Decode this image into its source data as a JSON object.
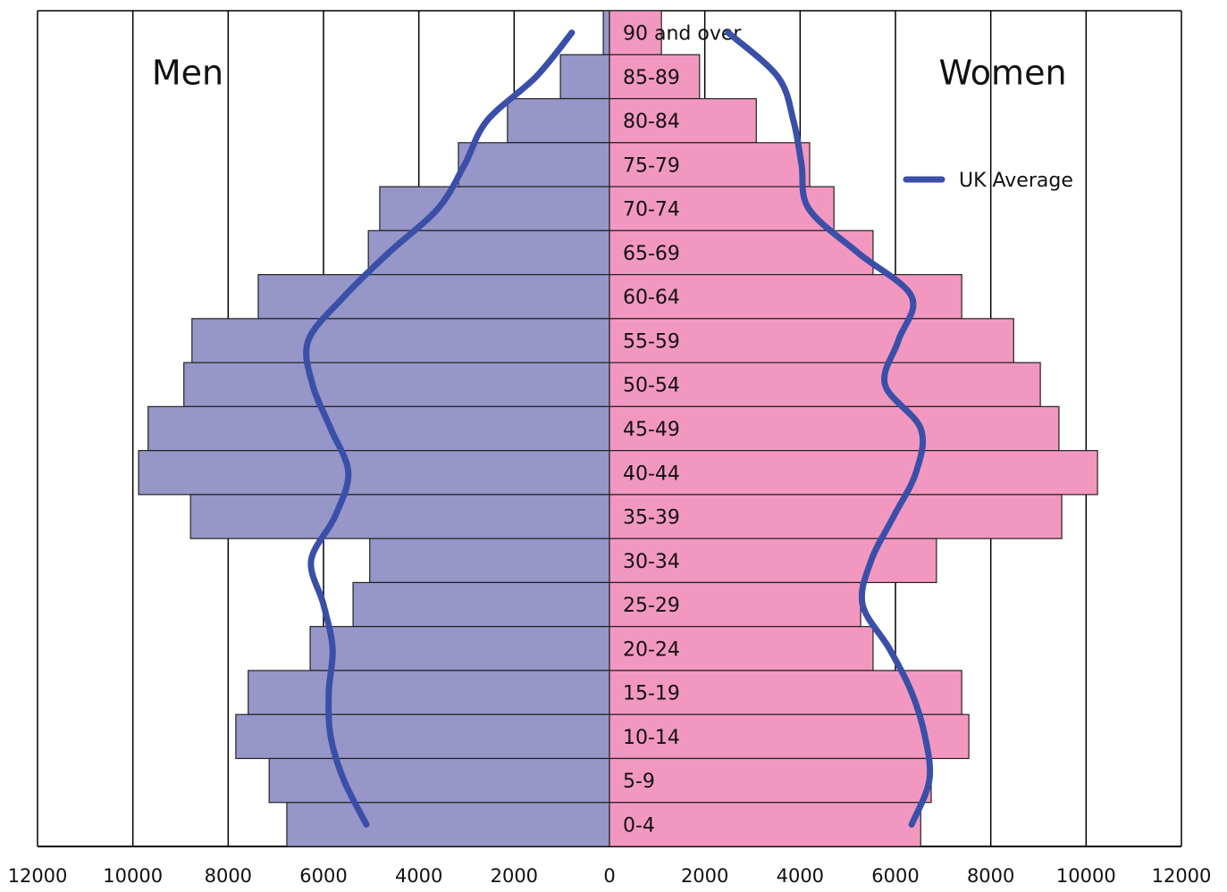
{
  "chart_data": {
    "type": "population-pyramid",
    "categories": [
      "90 and over",
      "85-89",
      "80-84",
      "75-79",
      "70-74",
      "65-69",
      "60-64",
      "55-59",
      "50-54",
      "45-49",
      "40-44",
      "35-39",
      "30-34",
      "25-29",
      "20-24",
      "15-19",
      "10-14",
      "5-9",
      "0-4"
    ],
    "series": [
      {
        "name": "Men",
        "color": "#9696c8",
        "side": "left",
        "values": [
          130,
          1030,
          2140,
          3170,
          4820,
          5060,
          7370,
          8760,
          8930,
          9680,
          9880,
          8790,
          5030,
          5380,
          6280,
          7580,
          7840,
          7140,
          6770
        ]
      },
      {
        "name": "Women",
        "color": "#f298c0",
        "side": "right",
        "values": [
          1090,
          1890,
          3080,
          4200,
          4710,
          5530,
          7390,
          8480,
          9040,
          9430,
          10240,
          9490,
          6860,
          5270,
          5530,
          7390,
          7540,
          6750,
          6530
        ]
      }
    ],
    "average": {
      "name": "UK Average",
      "color": "#3a4fa8",
      "men": [
        790,
        1540,
        2570,
        3040,
        3600,
        4630,
        5570,
        6320,
        6230,
        5850,
        5480,
        5760,
        6260,
        6000,
        5810,
        5890,
        5850,
        5570,
        5100
      ],
      "women": [
        2490,
        3530,
        3860,
        4030,
        4180,
        5210,
        6340,
        6060,
        5780,
        6530,
        6430,
        5960,
        5490,
        5310,
        5870,
        6340,
        6620,
        6710,
        6340
      ]
    },
    "xlim": [
      -12000,
      12000
    ],
    "xticks": [
      {
        "value": -12000,
        "label": "12000"
      },
      {
        "value": -10000,
        "label": "10000"
      },
      {
        "value": -8000,
        "label": "8000"
      },
      {
        "value": -6000,
        "label": "6000"
      },
      {
        "value": -4000,
        "label": "4000"
      },
      {
        "value": -2000,
        "label": "2000"
      },
      0,
      2000,
      4000,
      6000,
      8000,
      10000,
      12000
    ],
    "grid": true,
    "legend": "upper right"
  }
}
